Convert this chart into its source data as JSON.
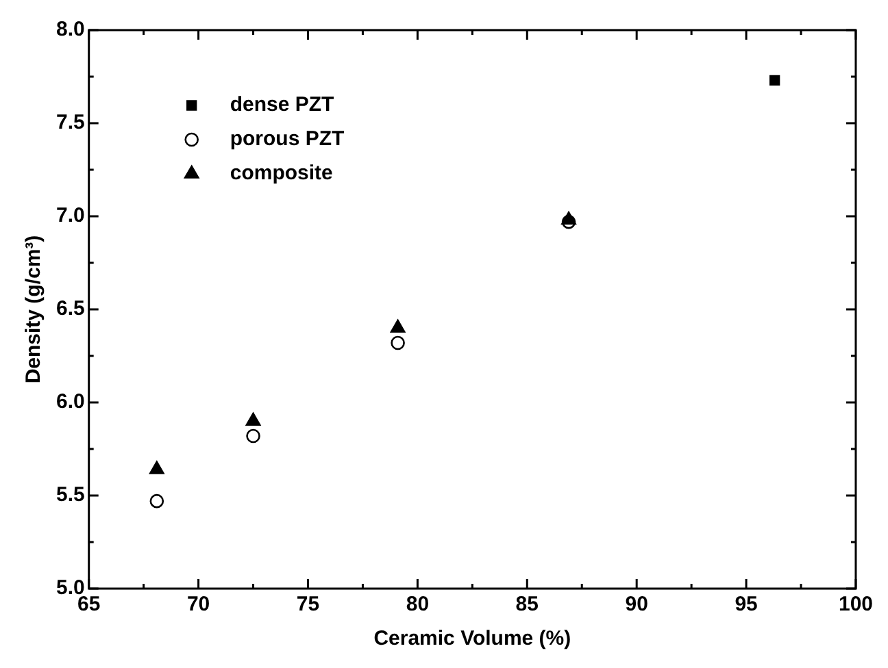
{
  "chart_data": {
    "type": "scatter",
    "xlabel": "Ceramic Volume (%)",
    "ylabel": "Density (g/cm³)",
    "xlim": [
      65,
      100
    ],
    "ylim": [
      5.0,
      8.0
    ],
    "xticks": [
      65,
      {
        "value": 67.5,
        "label": null
      },
      70,
      {
        "value": 72.5,
        "label": null
      },
      75,
      {
        "value": 77.5,
        "label": null
      },
      80,
      {
        "value": 82.5,
        "label": null
      },
      85,
      {
        "value": 87.5,
        "label": null
      },
      90,
      {
        "value": 92.5,
        "label": null
      },
      95,
      {
        "value": 97.5,
        "label": null
      },
      100
    ],
    "yticks": [
      {
        "value": 5.0,
        "label": "5.0"
      },
      {
        "value": 5.25,
        "label": null
      },
      {
        "value": 5.5,
        "label": "5.5"
      },
      {
        "value": 5.75,
        "label": null
      },
      {
        "value": 6.0,
        "label": "6.0"
      },
      {
        "value": 6.25,
        "label": null
      },
      {
        "value": 6.5,
        "label": "6.5"
      },
      {
        "value": 6.75,
        "label": null
      },
      {
        "value": 7.0,
        "label": "7.0"
      },
      {
        "value": 7.25,
        "label": null
      },
      {
        "value": 7.5,
        "label": "7.5"
      },
      {
        "value": 7.75,
        "label": null
      },
      {
        "value": 8.0,
        "label": "8.0"
      }
    ],
    "grid": false,
    "legend": "top left",
    "series": [
      {
        "name": "dense PZT",
        "color": "#000000",
        "marker": "square",
        "x": [
          96.3
        ],
        "values": [
          7.73
        ]
      },
      {
        "name": "porous PZT",
        "color": "#000000",
        "marker": "circle",
        "x": [
          68.1,
          72.5,
          79.1,
          86.9
        ],
        "values": [
          5.47,
          5.82,
          6.32,
          6.97
        ]
      },
      {
        "name": "composite",
        "color": "#000000",
        "marker": "triangle",
        "x": [
          68.1,
          72.5,
          79.1,
          86.9
        ],
        "values": [
          5.64,
          5.9,
          6.4,
          6.98
        ]
      }
    ]
  }
}
